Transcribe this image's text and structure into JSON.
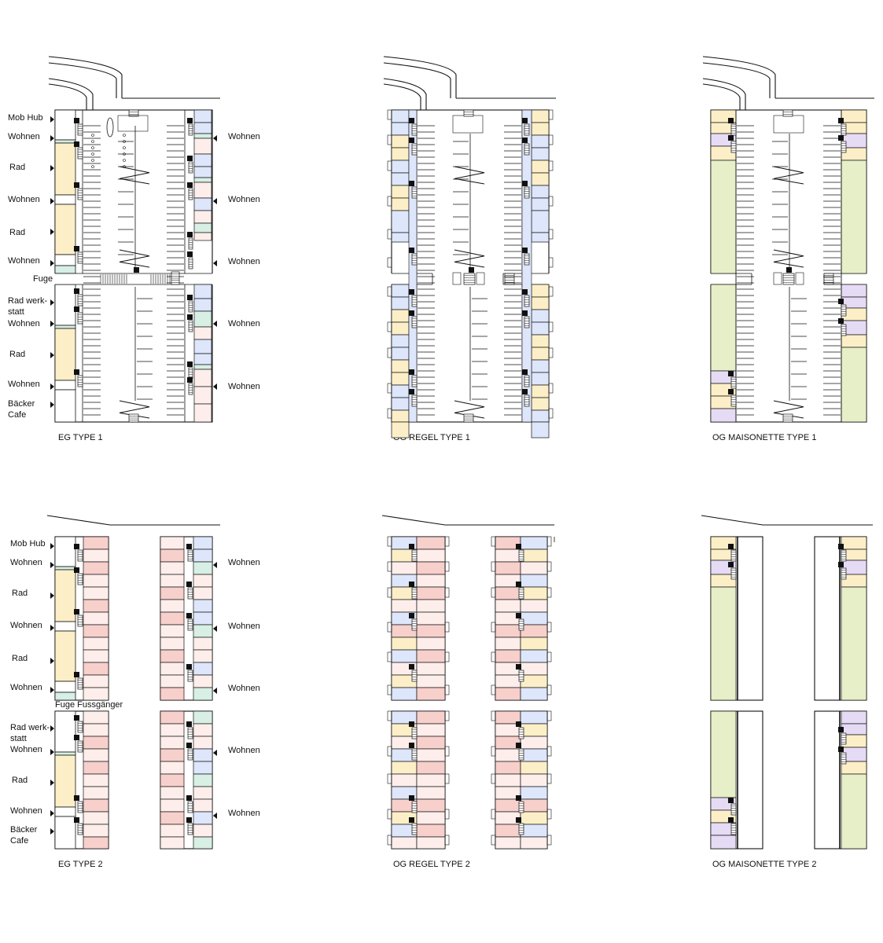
{
  "colors": {
    "blue": "#dde6fa",
    "yellow": "#fcefc7",
    "green": "#e6efc8",
    "purple": "#e6dbf5",
    "red": "#f7cfcb",
    "pink": "#fdeeeb",
    "teal": "#d7efe4",
    "white": "#ffffff",
    "line": "#111111"
  },
  "plans": [
    {
      "id": "eg-type-1",
      "type": "EG",
      "caption": "EG TYPE 1"
    },
    {
      "id": "og-regel-type-1",
      "type": "OG_REGEL",
      "caption": "OG REGEL TYPE 1"
    },
    {
      "id": "og-maisonette-type-1",
      "type": "OG_MAISONETTE",
      "caption": "OG MAISONETTE TYPE 1"
    },
    {
      "id": "eg-type-2",
      "type": "EG",
      "caption": "EG TYPE 2"
    },
    {
      "id": "og-regel-type-2",
      "type": "OG_REGEL",
      "caption": "OG REGEL TYPE 2"
    },
    {
      "id": "og-maisonette-type-2",
      "type": "OG_MAISONETTE",
      "caption": "OG MAISONETTE TYPE 2"
    }
  ],
  "labels": {
    "mob_hub": "Mob Hub",
    "wohnen": "Wohnen",
    "rad": "Rad",
    "fuge": "Fuge Fussgänger",
    "rad_werkstatt_1": "Rad werk-",
    "rad_werkstatt_2": "statt",
    "baecker": "Bäcker",
    "cafe": "Cafe"
  }
}
